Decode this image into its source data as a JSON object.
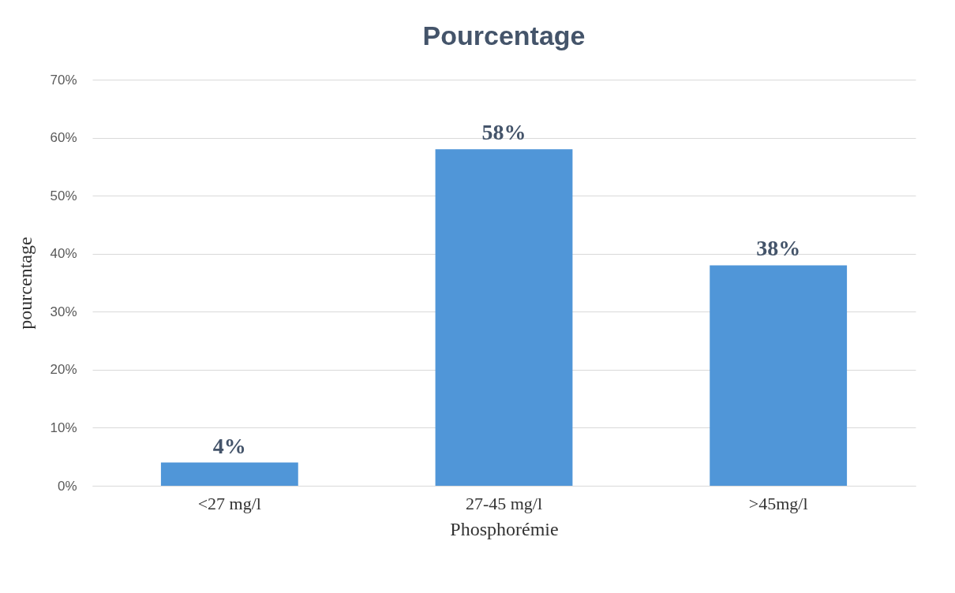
{
  "chart_data": {
    "type": "bar",
    "title": "Pourcentage",
    "xlabel": "Phosphorémie",
    "ylabel": "pourcentage",
    "categories": [
      "<27 mg/l",
      "27-45 mg/l",
      ">45mg/l"
    ],
    "values": [
      4,
      58,
      38
    ],
    "color": "#5096d8",
    "value_labels": [
      "4%",
      "58%",
      "38%"
    ],
    "ylim": [
      0,
      70
    ],
    "yticks": [
      {
        "value": 0,
        "label": "0%"
      },
      {
        "value": 10,
        "label": "10%"
      },
      {
        "value": 20,
        "label": "20%"
      },
      {
        "value": 30,
        "label": "30%"
      },
      {
        "value": 40,
        "label": "40%"
      },
      {
        "value": 50,
        "label": "50%"
      },
      {
        "value": 60,
        "label": "60%"
      },
      {
        "value": 70,
        "label": "70%"
      }
    ],
    "grid": "y"
  }
}
